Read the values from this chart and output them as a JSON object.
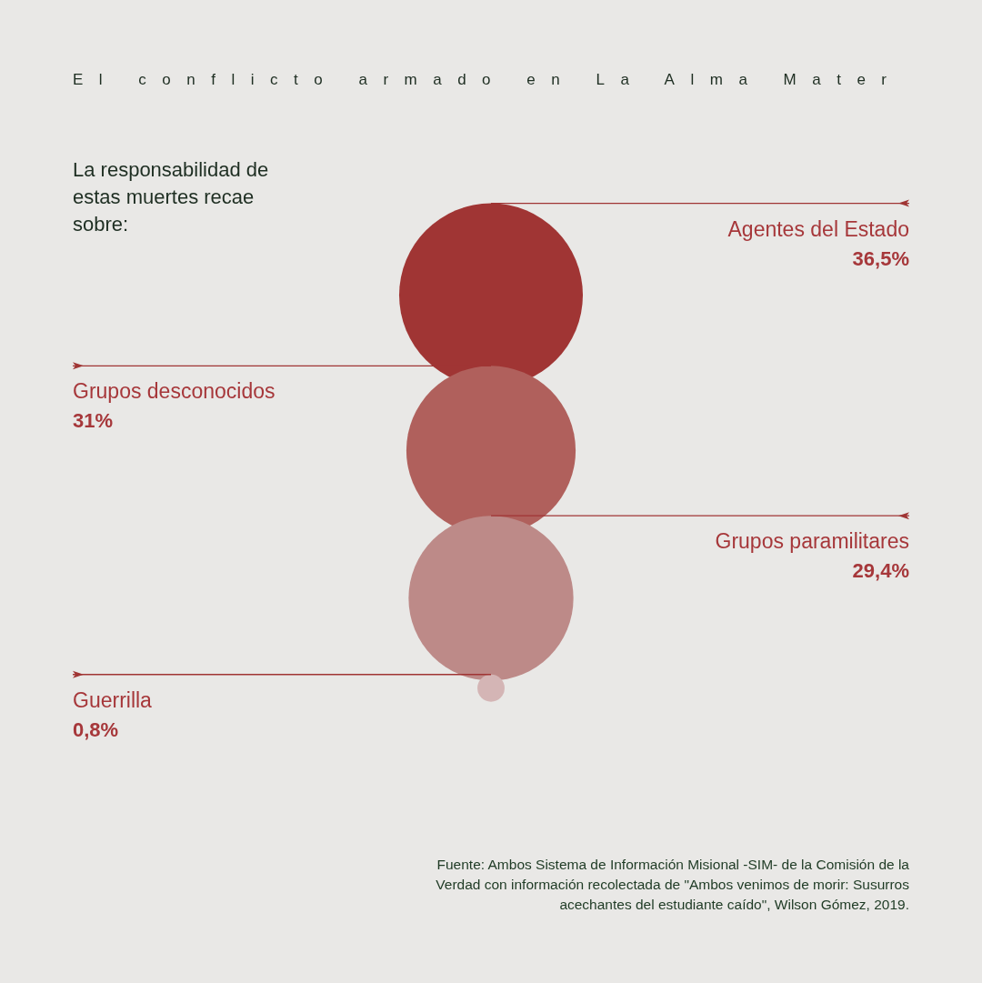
{
  "chart_data": {
    "type": "other",
    "title": "El conflicto armado en La Alma Mater",
    "subtitle": "La responsabilidad de estas muertes recae sobre:",
    "categories": [
      "Agentes del Estado",
      "Grupos desconocidos",
      "Grupos paramilitares",
      "Guerrilla"
    ],
    "values": [
      36.5,
      31,
      29.4,
      0.8
    ],
    "colors": [
      "#a03534",
      "#b0605c",
      "#bd8a88",
      "#d4b5b5"
    ],
    "value_labels": [
      "36,5%",
      "31%",
      "29,4%",
      "0,8%"
    ],
    "annotations": [
      "Fuente: Ambos Sistema de Información Misional -SIM- de la Comisión de la Verdad con información recolectada de \"Ambos venimos de morir: Susurros acechantes del estudiante caído\", Wilson Gómez, 2019."
    ]
  }
}
